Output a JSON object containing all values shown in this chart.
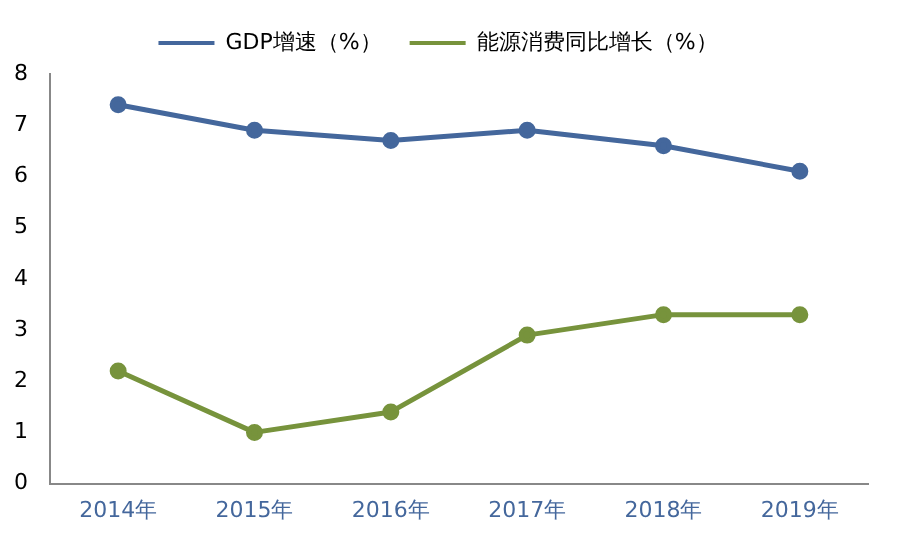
{
  "chart_data": {
    "type": "line",
    "categories": [
      "2014年",
      "2015年",
      "2016年",
      "2017年",
      "2018年",
      "2019年"
    ],
    "series": [
      {
        "name": "GDP增速（%）",
        "color": "#44679c",
        "values": [
          7.4,
          6.9,
          6.7,
          6.9,
          6.6,
          6.1
        ]
      },
      {
        "name": "能源消费同比增长（%）",
        "color": "#77933c",
        "values": [
          2.2,
          1.0,
          1.4,
          2.9,
          3.3,
          3.3
        ]
      }
    ],
    "ylim": [
      0,
      8
    ],
    "yticks": [
      0,
      1,
      2,
      3,
      4,
      5,
      6,
      7,
      8
    ],
    "grid": false,
    "legend": "top",
    "marker": "circle",
    "line_style": "solid"
  }
}
